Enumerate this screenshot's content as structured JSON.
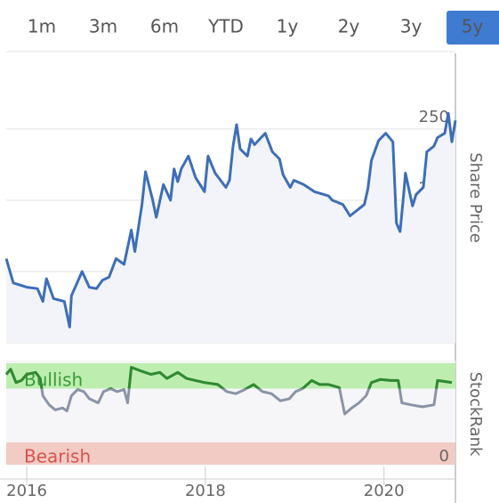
{
  "buttons": [
    {
      "label": "1m",
      "active": false
    },
    {
      "label": "3m",
      "active": false
    },
    {
      "label": "6m",
      "active": false
    },
    {
      "label": "YTD",
      "active": false
    },
    {
      "label": "1y",
      "active": false
    },
    {
      "label": "2y",
      "active": false
    },
    {
      "label": "3y",
      "active": false
    },
    {
      "label": "5y",
      "active": true
    }
  ],
  "chart_data": [
    {
      "type": "area",
      "y_label": "Share Price",
      "color": "#3d6eb8",
      "fill": "#f3f4fa",
      "grid": true,
      "xlim": [
        2015.77,
        2020.8
      ],
      "ylim": [
        100,
        303
      ],
      "yticks": [
        100,
        150,
        200,
        250
      ],
      "x": [
        2015.77,
        2015.85,
        2016.0,
        2016.12,
        2016.18,
        2016.22,
        2016.3,
        2016.42,
        2016.48,
        2016.5,
        2016.62,
        2016.7,
        2016.78,
        2016.85,
        2016.92,
        2017.0,
        2017.09,
        2017.17,
        2017.21,
        2017.29,
        2017.33,
        2017.41,
        2017.45,
        2017.53,
        2017.61,
        2017.65,
        2017.69,
        2017.73,
        2017.81,
        2017.89,
        2017.99,
        2018.03,
        2018.11,
        2018.23,
        2018.27,
        2018.31,
        2018.35,
        2018.39,
        2018.47,
        2018.51,
        2018.55,
        2018.67,
        2018.75,
        2018.83,
        2018.87,
        2018.95,
        2018.99,
        2019.1,
        2019.22,
        2019.38,
        2019.42,
        2019.54,
        2019.62,
        2019.7,
        2019.78,
        2019.82,
        2019.86,
        2019.94,
        2020.02,
        2020.1,
        2020.14,
        2020.18,
        2020.22,
        2020.24,
        2020.32,
        2020.36,
        2020.44,
        2020.48,
        2020.56,
        2020.6,
        2020.68,
        2020.72,
        2020.76,
        2020.8
      ],
      "values": [
        159,
        142,
        139,
        138,
        129,
        145,
        131,
        129,
        111,
        133,
        150,
        139,
        138,
        144,
        146,
        159,
        155,
        179,
        164,
        197,
        220,
        200,
        188,
        211,
        200,
        222,
        213,
        222,
        231,
        216,
        206,
        231,
        219,
        209,
        214,
        238,
        253,
        236,
        231,
        243,
        239,
        247,
        234,
        229,
        218,
        209,
        214,
        211,
        206,
        203,
        200,
        197,
        189,
        193,
        197,
        208,
        228,
        242,
        247,
        241,
        184,
        178,
        204,
        219,
        196,
        204,
        209,
        234,
        238,
        244,
        247,
        261,
        241,
        256
      ]
    },
    {
      "type": "line",
      "y_label": "StockRank",
      "color": "#2e8b2e",
      "low_color": "#8a94a8",
      "xlim": [
        2015.77,
        2020.8
      ],
      "xticks": [
        2016,
        2018,
        2020
      ],
      "ylim": [
        0,
        100
      ],
      "yticks": [
        0
      ],
      "bands": [
        {
          "label": "Bullish",
          "range": [
            75,
            100
          ],
          "color": "#bdeeb0",
          "text_color": "#3a9a3a"
        },
        {
          "label": "Bearish",
          "range": [
            0,
            22
          ],
          "color": "#f2cbc4",
          "text_color": "#d9534f"
        }
      ],
      "x": [
        2015.77,
        2015.82,
        2015.88,
        2015.94,
        2016.0,
        2016.1,
        2016.15,
        2016.18,
        2016.25,
        2016.32,
        2016.4,
        2016.45,
        2016.5,
        2016.57,
        2016.64,
        2016.7,
        2016.8,
        2016.86,
        2016.94,
        2017.01,
        2017.09,
        2017.13,
        2017.17,
        2017.29,
        2017.39,
        2017.49,
        2017.57,
        2017.69,
        2017.79,
        2017.89,
        2017.99,
        2018.14,
        2018.24,
        2018.34,
        2018.44,
        2018.54,
        2018.64,
        2018.74,
        2018.84,
        2018.94,
        2019.01,
        2019.09,
        2019.19,
        2019.28,
        2019.38,
        2019.5,
        2019.56,
        2019.64,
        2019.72,
        2019.8,
        2019.86,
        2019.96,
        2020.08,
        2020.16,
        2020.2,
        2020.3,
        2020.43,
        2020.56,
        2020.6,
        2020.68,
        2020.76
      ],
      "values": [
        89,
        94,
        81,
        83,
        89,
        91,
        85,
        68,
        59,
        54,
        56,
        53,
        68,
        74,
        72,
        65,
        61,
        72,
        75,
        72,
        74,
        61,
        96,
        92,
        89,
        91,
        85,
        91,
        85,
        83,
        81,
        79,
        72,
        70,
        74,
        79,
        72,
        70,
        63,
        65,
        72,
        75,
        83,
        79,
        79,
        76,
        50,
        56,
        61,
        68,
        81,
        84,
        83,
        83,
        61,
        59,
        57,
        59,
        83,
        82,
        81
      ]
    }
  ]
}
